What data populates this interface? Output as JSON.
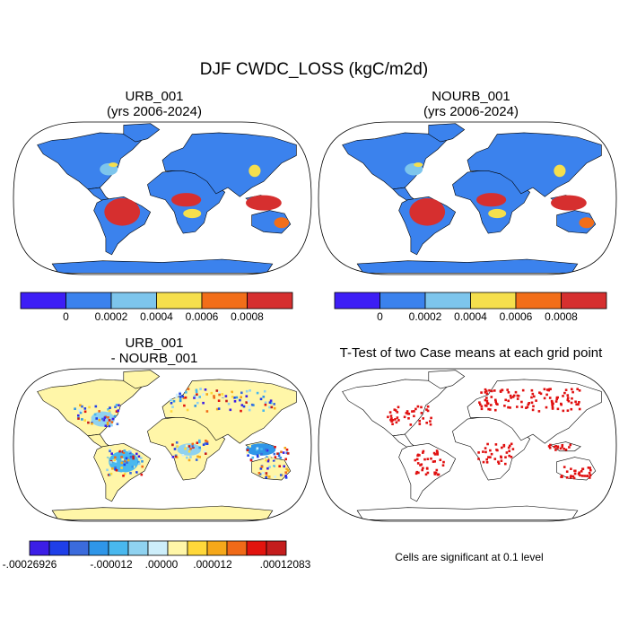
{
  "figure": {
    "title": "DJF CWDC_LOSS (kgC/m2d)"
  },
  "chart_data": [
    {
      "type": "heatmap",
      "subtitle_line1": "URB_001",
      "subtitle_line2": "(yrs 2006-2024)",
      "projection": "Robinson",
      "colorbar": {
        "colors": [
          "#3d1ef5",
          "#3b82ed",
          "#7dc5ec",
          "#f5df4d",
          "#f26e19",
          "#d62f2f"
        ],
        "tick_labels": [
          "0",
          "0.0002",
          "0.0004",
          "0.0006",
          "0.0008"
        ]
      }
    },
    {
      "type": "heatmap",
      "subtitle_line1": "NOURB_001",
      "subtitle_line2": "(yrs 2006-2024)",
      "projection": "Robinson",
      "colorbar": {
        "colors": [
          "#3d1ef5",
          "#3b82ed",
          "#7dc5ec",
          "#f5df4d",
          "#f26e19",
          "#d62f2f"
        ],
        "tick_labels": [
          "0",
          "0.0002",
          "0.0004",
          "0.0006",
          "0.0008"
        ]
      }
    },
    {
      "type": "heatmap",
      "subtitle_line1": "URB_001",
      "subtitle_line2": "- NOURB_001",
      "projection": "Robinson",
      "colorbar": {
        "colors": [
          "#3c1ee6",
          "#1f3fe8",
          "#3b6bdc",
          "#2f96e8",
          "#49b8ee",
          "#8fd2f0",
          "#cdeefa",
          "#fff6a8",
          "#ffd83a",
          "#f5a81a",
          "#f06a18",
          "#e2140e",
          "#c41d1d"
        ],
        "tick_labels": [
          "-.00026926",
          "-.000012",
          ".00000",
          ".000012",
          ".00012083"
        ]
      }
    },
    {
      "type": "heatmap",
      "subtitle_line1": "T-Test of two Case means at each grid point",
      "projection": "Robinson",
      "significance_color": "#e01010",
      "footnote": "Cells are significant at 0.1 level"
    }
  ]
}
